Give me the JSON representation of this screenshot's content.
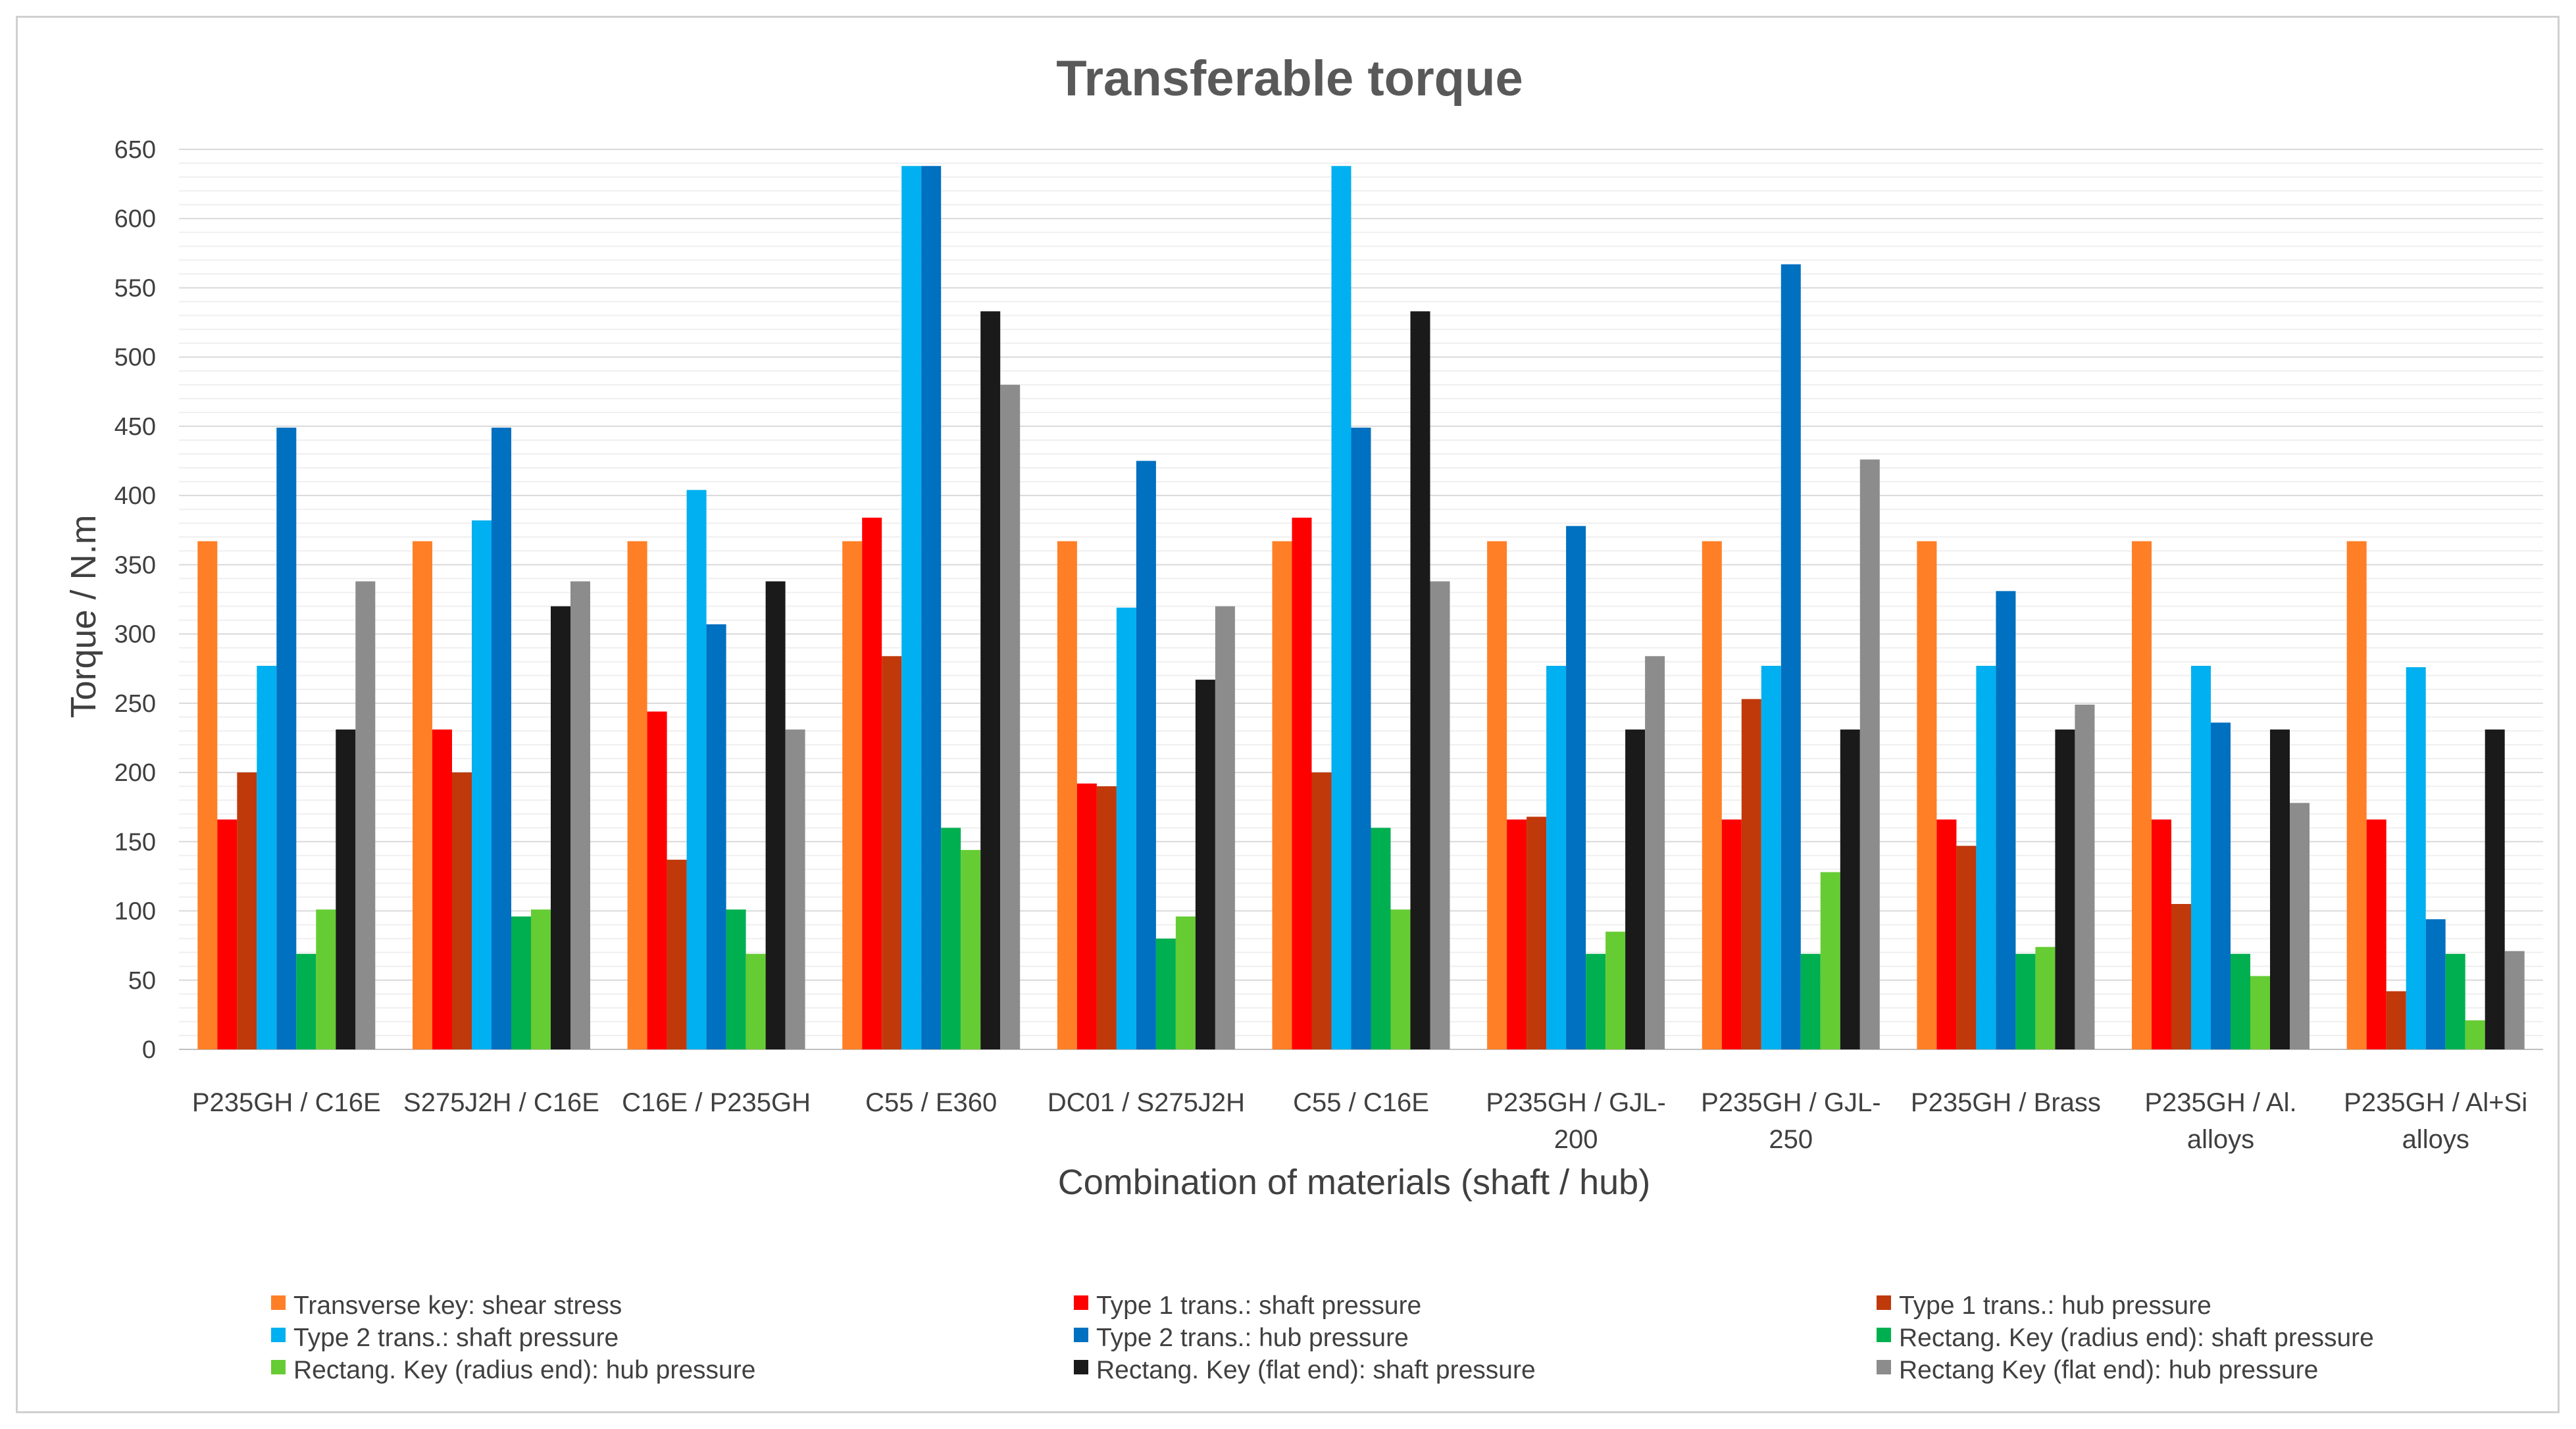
{
  "chart_data": {
    "type": "bar",
    "title": "Transferable torque",
    "xlabel": "Combination of materials (shaft / hub)",
    "ylabel": "Torque / N.m",
    "ylim": [
      0,
      650
    ],
    "yticks": [
      0,
      50,
      100,
      150,
      200,
      250,
      300,
      350,
      400,
      450,
      500,
      550,
      600,
      650
    ],
    "minor_gridlines": true,
    "legend_position": "bottom",
    "categories": [
      [
        "P235GH / C16E"
      ],
      [
        "S275J2H / C16E"
      ],
      [
        "C16E / P235GH"
      ],
      [
        "C55 / E360"
      ],
      [
        "DC01 / S275J2H"
      ],
      [
        "C55 / C16E"
      ],
      [
        "P235GH / GJL-",
        "200"
      ],
      [
        "P235GH / GJL-",
        "250"
      ],
      [
        "P235GH / Brass"
      ],
      [
        "P235GH / Al.",
        "alloys"
      ],
      [
        "P235GH / Al+Si",
        "alloys"
      ]
    ],
    "series": [
      {
        "name": "Transverse key: shear stress",
        "color": "#FF7F27",
        "values": [
          367,
          367,
          367,
          367,
          367,
          367,
          367,
          367,
          367,
          367,
          367
        ]
      },
      {
        "name": "Type 1 trans.: shaft pressure",
        "color": "#FF0000",
        "values": [
          166,
          231,
          244,
          384,
          192,
          384,
          166,
          166,
          166,
          166,
          166
        ]
      },
      {
        "name": "Type 1 trans.: hub pressure",
        "color": "#C0390A",
        "values": [
          200,
          200,
          137,
          284,
          190,
          200,
          168,
          253,
          147,
          105,
          42
        ]
      },
      {
        "name": "Type 2 trans.: shaft pressure",
        "color": "#00B0F0",
        "values": [
          277,
          382,
          404,
          638,
          319,
          638,
          277,
          277,
          277,
          277,
          276
        ]
      },
      {
        "name": "Type 2 trans.: hub pressure",
        "color": "#0070C0",
        "values": [
          449,
          449,
          307,
          638,
          425,
          449,
          378,
          567,
          331,
          236,
          94
        ]
      },
      {
        "name": "Rectang. Key (radius end): shaft pressure",
        "color": "#00B050",
        "values": [
          69,
          96,
          101,
          160,
          80,
          160,
          69,
          69,
          69,
          69,
          69
        ]
      },
      {
        "name": "Rectang. Key (radius end): hub pressure",
        "color": "#66CC33",
        "values": [
          101,
          101,
          69,
          144,
          96,
          101,
          85,
          128,
          74,
          53,
          21
        ]
      },
      {
        "name": "Rectang. Key (flat end): shaft pressure",
        "color": "#1A1A1A",
        "values": [
          231,
          320,
          338,
          533,
          267,
          533,
          231,
          231,
          231,
          231,
          231
        ]
      },
      {
        "name": "Rectang Key (flat end): hub pressure",
        "color": "#8C8C8C",
        "values": [
          338,
          338,
          231,
          480,
          320,
          338,
          284,
          426,
          249,
          178,
          71
        ]
      }
    ]
  }
}
